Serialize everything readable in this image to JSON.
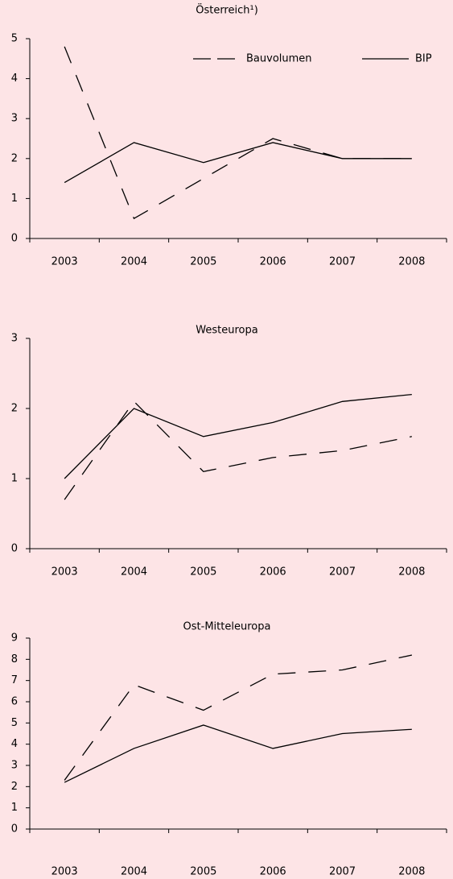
{
  "chart_data": [
    {
      "type": "line",
      "title": "Österreich¹)",
      "categories": [
        "2003",
        "2004",
        "2005",
        "2006",
        "2007",
        "2008"
      ],
      "series": [
        {
          "name": "Bauvolumen",
          "color": "#000000",
          "style": "dashed",
          "values": [
            4.8,
            0.5,
            1.5,
            2.5,
            2.0,
            2.0
          ]
        },
        {
          "name": "BIP",
          "color": "#000000",
          "style": "solid",
          "values": [
            1.4,
            2.4,
            1.9,
            2.4,
            2.0,
            2.0
          ]
        }
      ],
      "ylim": [
        0,
        5
      ],
      "yticks": [
        0,
        1,
        2,
        3,
        4,
        5
      ],
      "legend": "top-right"
    },
    {
      "type": "line",
      "title": "Westeuropa",
      "categories": [
        "2003",
        "2004",
        "2005",
        "2006",
        "2007",
        "2008"
      ],
      "series": [
        {
          "color": "#000000",
          "style": "dashed",
          "values": [
            0.7,
            2.1,
            1.1,
            1.3,
            1.4,
            1.6
          ]
        },
        {
          "color": "#000000",
          "style": "solid",
          "values": [
            1.0,
            2.0,
            1.6,
            1.8,
            2.1,
            2.2
          ]
        }
      ],
      "ylim": [
        0,
        3
      ],
      "yticks": [
        0,
        1,
        2,
        3
      ]
    },
    {
      "type": "line",
      "title": "Ost-Mitteleuropa",
      "categories": [
        "2003",
        "2004",
        "2005",
        "2006",
        "2007",
        "2008"
      ],
      "series": [
        {
          "color": "#000000",
          "style": "dashed",
          "values": [
            2.3,
            6.8,
            5.6,
            7.3,
            7.5,
            8.2
          ]
        },
        {
          "color": "#000000",
          "style": "solid",
          "values": [
            2.2,
            3.8,
            4.9,
            3.8,
            4.5,
            4.7
          ]
        }
      ],
      "ylim": [
        0,
        9
      ],
      "yticks": [
        0,
        1,
        2,
        3,
        4,
        5,
        6,
        7,
        8,
        9
      ]
    }
  ]
}
